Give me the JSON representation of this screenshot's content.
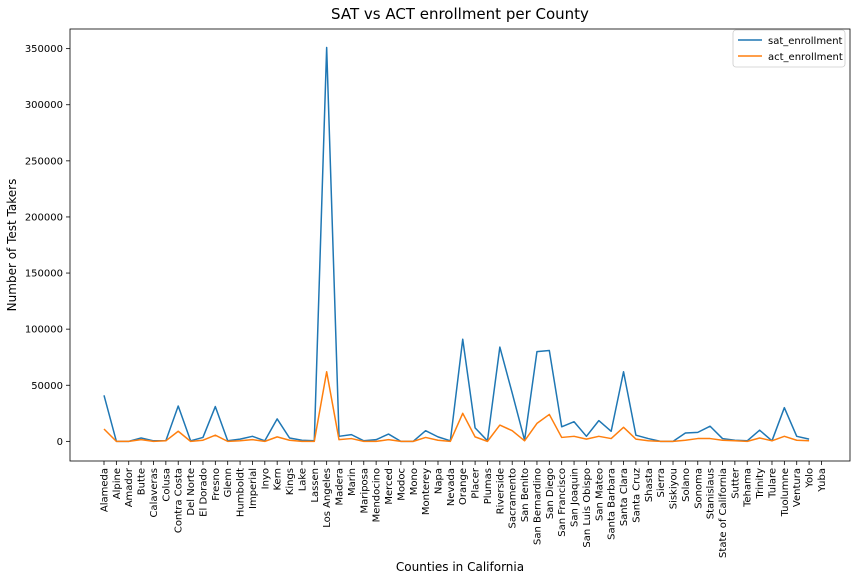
{
  "chart_data": {
    "type": "line",
    "title": "SAT vs ACT enrollment per County",
    "xlabel": "Counties in California",
    "ylabel": "Number of Test Takers",
    "ylim": [
      -17500,
      367500
    ],
    "yticks": [
      0,
      50000,
      100000,
      150000,
      200000,
      250000,
      300000,
      350000
    ],
    "ytick_labels": [
      "0",
      "50000",
      "100000",
      "150000",
      "200000",
      "250000",
      "300000",
      "350000"
    ],
    "grid": false,
    "legend_position": "top-right",
    "categories": [
      "Alameda",
      "Alpine",
      "Amador",
      "Butte",
      "Calaveras",
      "Colusa",
      "Contra Costa",
      "Del Norte",
      "El Dorado",
      "Fresno",
      "Glenn",
      "Humboldt",
      "Imperial",
      "Inyo",
      "Kern",
      "Kings",
      "Lake",
      "Lassen",
      "Los Angeles",
      "Madera",
      "Marin",
      "Mariposa",
      "Mendocino",
      "Merced",
      "Modoc",
      "Mono",
      "Monterey",
      "Napa",
      "Nevada",
      "Orange",
      "Placer",
      "Plumas",
      "Riverside",
      "Sacramento",
      "San Benito",
      "San Bernardino",
      "San Diego",
      "San Francisco",
      "San Joaquin",
      "San Luis Obispo",
      "San Mateo",
      "Santa Barbara",
      "Santa Clara",
      "Santa Cruz",
      "Shasta",
      "Sierra",
      "Siskiyou",
      "Solano",
      "Sonoma",
      "Stanislaus",
      "State of California",
      "Sutter",
      "Tehama",
      "Trinity",
      "Tulare",
      "Tuolumne",
      "Ventura",
      "Yolo",
      "Yuba"
    ],
    "series": [
      {
        "name": "sat_enrollment",
        "color": "#1f77b4",
        "values": [
          41000,
          0,
          0,
          3000,
          500,
          500,
          31500,
          500,
          3500,
          31000,
          500,
          2000,
          4500,
          500,
          20000,
          3000,
          1000,
          500,
          351000,
          4500,
          6000,
          500,
          1500,
          6500,
          0,
          0,
          9500,
          4000,
          500,
          91000,
          12000,
          500,
          84000,
          43000,
          1000,
          80000,
          81000,
          13000,
          17500,
          4500,
          18500,
          9000,
          62000,
          5500,
          2500,
          0,
          0,
          7500,
          8000,
          13500,
          2500,
          1000,
          500,
          10000,
          500,
          30000,
          4500,
          2000,
          null
        ],
        "count_note": null
      },
      {
        "name": "act_enrollment",
        "color": "#ff7f0e",
        "values": [
          11000,
          0,
          0,
          1500,
          0,
          500,
          9000,
          0,
          1000,
          5500,
          0,
          500,
          1500,
          0,
          4000,
          1000,
          0,
          0,
          62000,
          1500,
          2500,
          0,
          0,
          1500,
          0,
          0,
          3500,
          1000,
          0,
          25000,
          4000,
          0,
          14500,
          9500,
          500,
          16000,
          24000,
          3500,
          4500,
          2000,
          4500,
          2500,
          12500,
          2000,
          500,
          0,
          0,
          1000,
          2500,
          2500,
          1000,
          500,
          0,
          3000,
          500,
          4500,
          1000,
          500,
          null
        ]
      }
    ]
  }
}
